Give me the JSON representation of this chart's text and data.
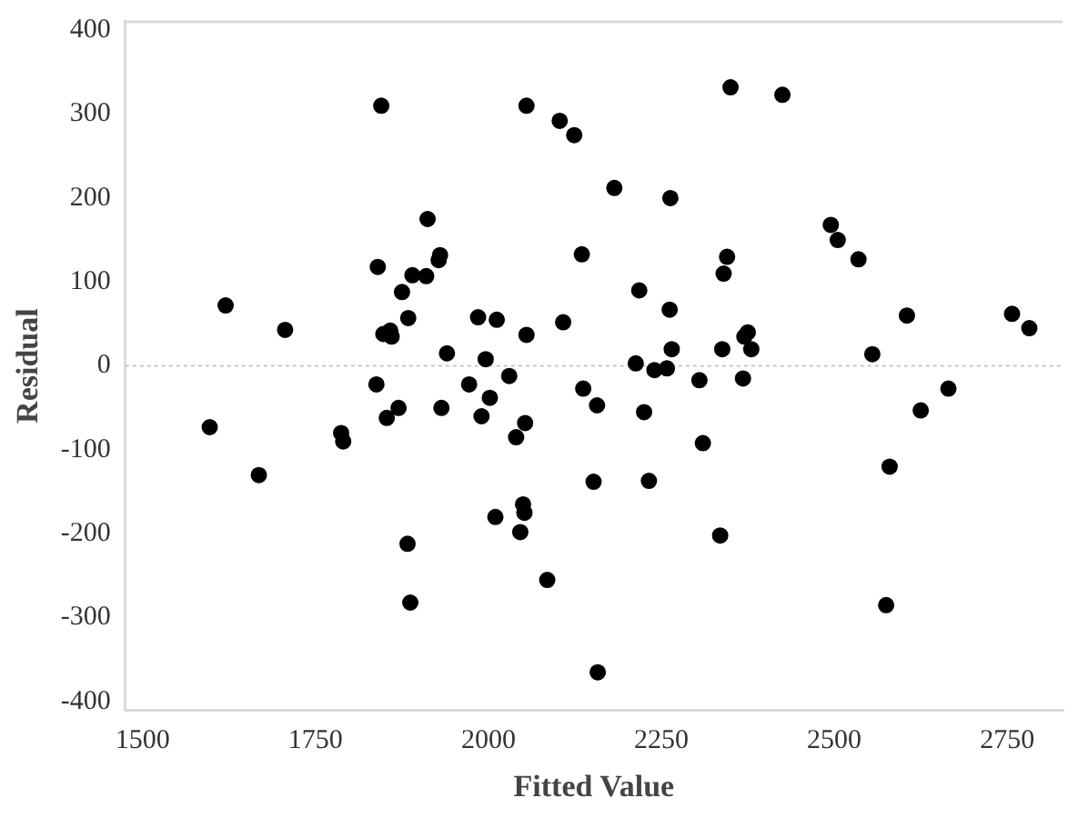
{
  "chart_data": {
    "type": "scatter",
    "xlabel": "Fitted Value",
    "ylabel": "Residual",
    "xlim": [
      1475,
      2830
    ],
    "ylim": [
      -410,
      410
    ],
    "xticks": [
      1500,
      1750,
      2000,
      2250,
      2500,
      2750
    ],
    "yticks": [
      -400,
      -300,
      -200,
      -100,
      0,
      100,
      200,
      300,
      400
    ],
    "grid": false,
    "legend": false,
    "marker": "circle",
    "ref_lines": [
      {
        "axis": "y",
        "value": 0,
        "color": "#c8c8c8",
        "line_style": "dotted"
      }
    ],
    "series": [
      {
        "color": "#000000",
        "x": [
          1597,
          1620,
          1668,
          1706,
          1787,
          1790,
          1838,
          1840,
          1845,
          1848,
          1853,
          1858,
          1860,
          1870,
          1875,
          1883,
          1884,
          1887,
          1890,
          1910,
          1912,
          1928,
          1930,
          1932,
          1940,
          1972,
          1985,
          1990,
          1996,
          2002,
          2010,
          2012,
          2030,
          2040,
          2046,
          2050,
          2052,
          2053,
          2055,
          2055,
          2085,
          2103,
          2108,
          2124,
          2135,
          2137,
          2152,
          2157,
          2158,
          2182,
          2213,
          2218,
          2225,
          2232,
          2240,
          2258,
          2262,
          2265,
          2263,
          2305,
          2310,
          2335,
          2338,
          2340,
          2345,
          2350,
          2368,
          2370,
          2375,
          2380,
          2425,
          2495,
          2505,
          2535,
          2555,
          2575,
          2580,
          2605,
          2625,
          2665,
          2757,
          2782
        ],
        "values": [
          -73,
          72,
          -130,
          43,
          -80,
          -90,
          -22,
          118,
          310,
          38,
          -62,
          42,
          35,
          -50,
          88,
          -212,
          57,
          -282,
          108,
          107,
          175,
          126,
          132,
          -50,
          15,
          -22,
          58,
          -60,
          8,
          -38,
          -180,
          55,
          -12,
          -85,
          -198,
          -165,
          -175,
          -68,
          37,
          310,
          -255,
          292,
          52,
          275,
          133,
          -27,
          -138,
          -47,
          -365,
          212,
          3,
          90,
          -55,
          -137,
          -5,
          -3,
          67,
          20,
          200,
          -17,
          -92,
          -202,
          20,
          110,
          130,
          332,
          -15,
          35,
          40,
          20,
          323,
          168,
          150,
          127,
          14,
          -285,
          -120,
          60,
          -53,
          -27,
          62,
          45
        ]
      }
    ]
  }
}
